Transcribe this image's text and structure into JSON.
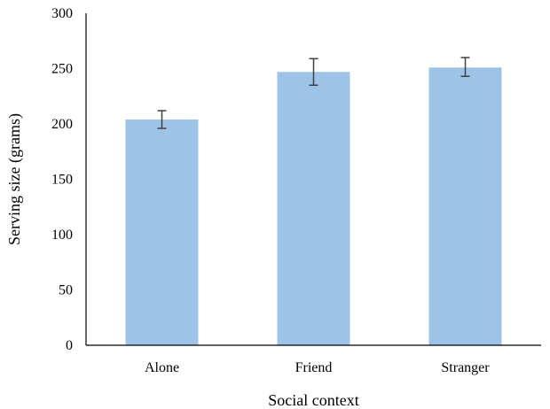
{
  "chart_data": {
    "type": "bar",
    "categories": [
      "Alone",
      "Friend",
      "Stranger"
    ],
    "values": [
      204,
      247,
      251
    ],
    "error_low": [
      196,
      235,
      243
    ],
    "error_high": [
      212,
      259,
      260
    ],
    "title": "",
    "xlabel": "Social context",
    "ylabel": "Serving size (grams)",
    "ylim": [
      0,
      300
    ],
    "yticks": [
      0,
      50,
      100,
      150,
      200,
      250,
      300
    ],
    "grid": false,
    "legend": "none",
    "bar_color": "#9dc3e6",
    "error_bar_color": "#404040"
  }
}
